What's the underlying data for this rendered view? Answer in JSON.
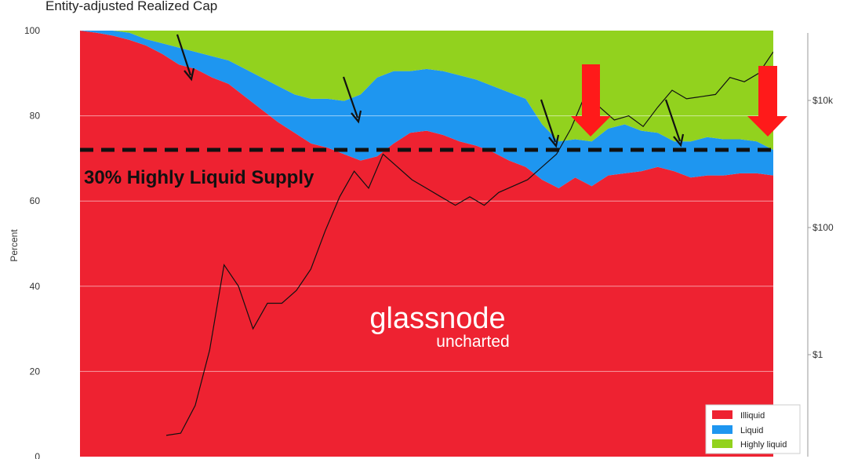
{
  "chart_data": {
    "type": "area",
    "title": "Entity-adjusted Realized Cap",
    "ylabel": "Percent",
    "ylim": [
      0,
      100
    ],
    "y_ticks": [
      "0",
      "20",
      "40",
      "60",
      "80",
      "100"
    ],
    "y2_scale": "log",
    "y2_ticks": [
      "$1",
      "$100",
      "$10k"
    ],
    "stacked": true,
    "series": [
      {
        "name": "Illiquid",
        "color": "#ee2231",
        "values": [
          100,
          99.5,
          98.8,
          97.8,
          96.5,
          94.5,
          92,
          91,
          89,
          87.5,
          84.5,
          81.5,
          78.5,
          76,
          73.5,
          72.5,
          71,
          69.5,
          70.5,
          73.5,
          76,
          76.5,
          75.5,
          74,
          73,
          71.5,
          69.5,
          68,
          65,
          63,
          65.5,
          63.5,
          66,
          66.5,
          67,
          68,
          67,
          65.5,
          66,
          66,
          66.5,
          66.5,
          66
        ]
      },
      {
        "name": "Liquid",
        "color": "#1e96f0",
        "values": [
          0,
          0.5,
          1.2,
          1.7,
          1.5,
          2.5,
          4,
          4,
          5,
          5.5,
          6.5,
          7.5,
          8.5,
          9,
          10.5,
          11.5,
          12.5,
          15.5,
          18.5,
          17,
          14.5,
          14.5,
          15,
          15.5,
          15.5,
          15.5,
          16,
          16,
          13,
          11,
          9,
          10.5,
          11,
          11.5,
          9.5,
          8,
          7,
          8.5,
          9,
          8.5,
          8,
          7.5,
          6
        ]
      },
      {
        "name": "Highly liquid",
        "color": "#92d21e",
        "values": [
          0,
          0,
          0,
          0.5,
          2,
          3,
          4,
          5,
          6,
          7,
          9,
          11,
          13,
          15,
          16,
          16,
          16.5,
          15,
          11,
          9.5,
          9.5,
          9,
          9.5,
          10.5,
          11.5,
          13,
          14.5,
          16,
          22,
          26,
          25.5,
          26,
          23,
          22,
          23.5,
          24,
          26,
          26,
          25,
          25.5,
          25.5,
          26,
          28
        ]
      }
    ],
    "price_series": {
      "color": "#111111",
      "values": [
        5,
        5.5,
        12,
        25,
        45,
        40,
        30,
        36,
        36,
        39,
        44,
        53,
        61,
        67,
        63,
        71,
        68,
        65,
        63,
        61,
        59,
        61,
        59,
        62,
        63.5,
        65,
        68,
        71,
        77,
        85,
        82,
        79,
        80,
        77.5,
        82,
        86,
        84,
        84.5,
        85,
        89,
        88,
        90,
        95
      ]
    },
    "reference_line": {
      "y": 72
    },
    "annotations": {
      "reference_label": "30% Highly Liquid Supply"
    },
    "legend_placement": "bottom-right",
    "grid": true
  },
  "watermark": {
    "main": "glassnode",
    "sub": "uncharted"
  }
}
